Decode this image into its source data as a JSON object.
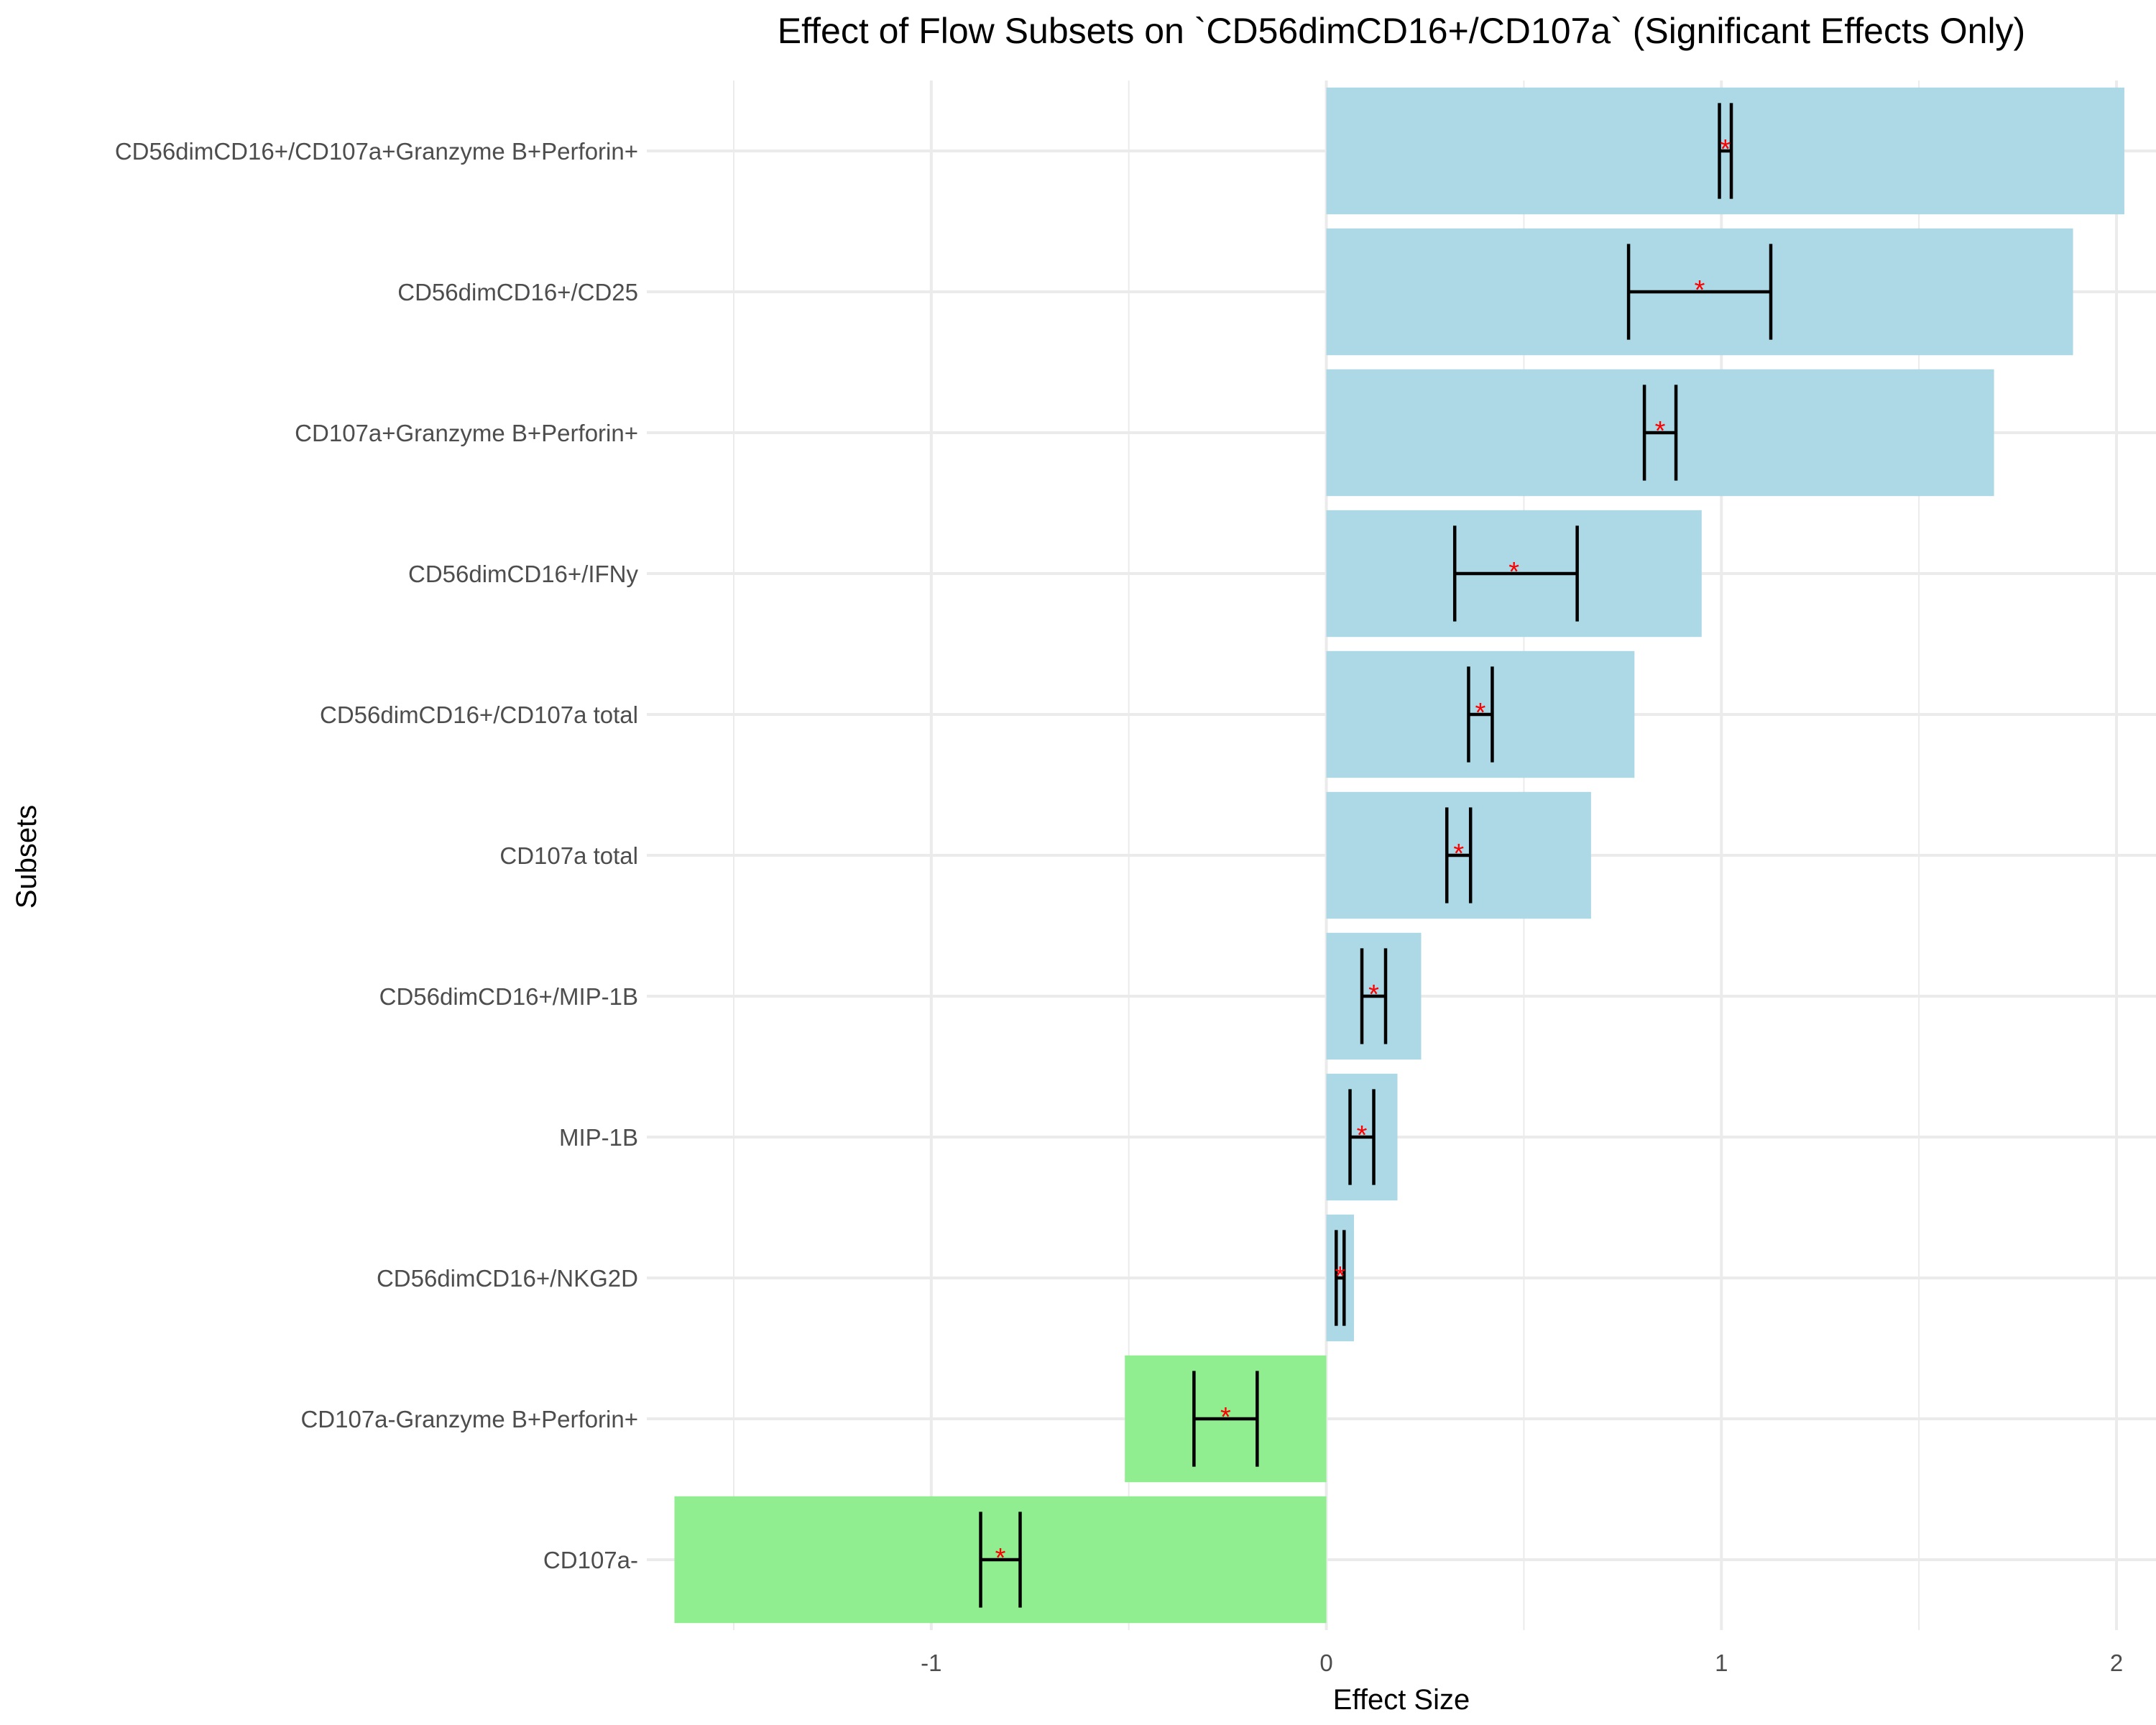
{
  "chart_data": {
    "type": "bar",
    "orientation": "horizontal",
    "title": "Effect of Flow Subsets on `CD56dimCD16+/CD107a` (Significant Effects Only)",
    "xlabel": "Effect Size",
    "ylabel": "Subsets",
    "xlim": [
      -1.72,
      2.1
    ],
    "x_ticks": [
      -1,
      0,
      1,
      2
    ],
    "x_tick_labels": [
      "-1",
      "0",
      "1",
      "2"
    ],
    "grid": true,
    "legend": "none",
    "colors": {
      "positive": "#add8e6",
      "negative": "#90ee90",
      "error_bar": "#000000",
      "significance_marker": "#ff0000"
    },
    "significance_marker": "*",
    "categories": [
      "CD56dimCD16+/CD107a+Granzyme B+Perforin+",
      "CD56dimCD16+/CD25",
      "CD107a+Granzyme B+Perforin+",
      "CD56dimCD16+/IFNy",
      "CD56dimCD16+/CD107a total",
      "CD107a total",
      "CD56dimCD16+/MIP-1B",
      "MIP-1B",
      "CD56dimCD16+/NKG2D",
      "CD107a-Granzyme B+Perforin+",
      "CD107a-"
    ],
    "values": [
      2.02,
      1.89,
      1.69,
      0.95,
      0.78,
      0.67,
      0.24,
      0.18,
      0.07,
      -0.51,
      -1.65
    ],
    "estimate": [
      1.01,
      0.945,
      0.845,
      0.475,
      0.39,
      0.335,
      0.12,
      0.09,
      0.035,
      -0.255,
      -0.825
    ],
    "ci_low": [
      0.995,
      0.765,
      0.805,
      0.325,
      0.36,
      0.305,
      0.09,
      0.06,
      0.025,
      -0.335,
      -0.875
    ],
    "ci_high": [
      1.025,
      1.125,
      0.885,
      0.635,
      0.42,
      0.365,
      0.15,
      0.12,
      0.045,
      -0.175,
      -0.775
    ]
  }
}
